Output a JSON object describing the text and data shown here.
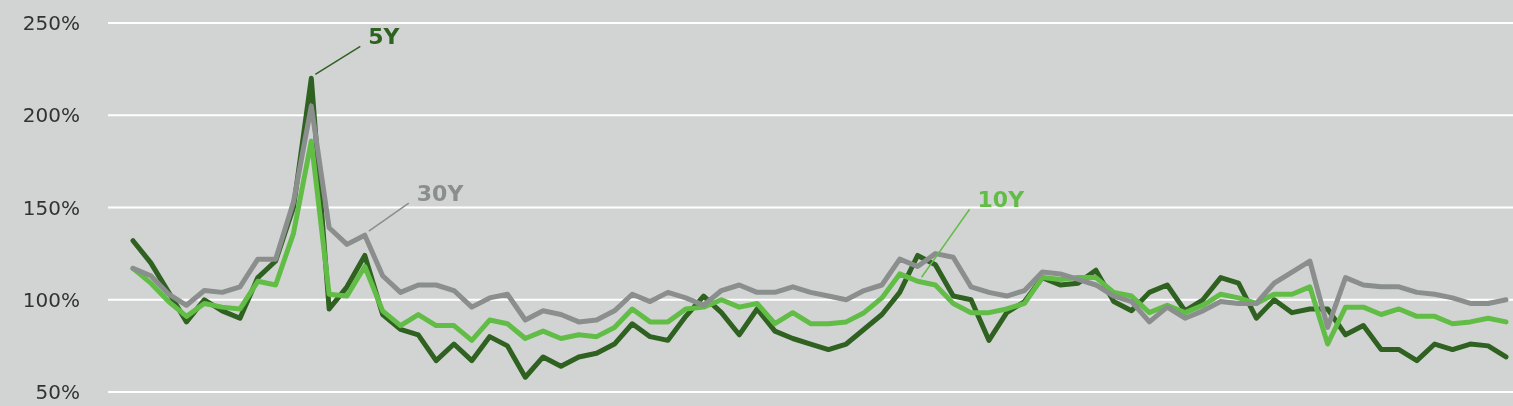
{
  "chart_data": {
    "type": "line",
    "categories": [
      null,
      null,
      null,
      null,
      null,
      null,
      null,
      null,
      null,
      null,
      null,
      null,
      null,
      null,
      null,
      null,
      null,
      null,
      null,
      null,
      null,
      null,
      null,
      null,
      null,
      null,
      null,
      null,
      null,
      null,
      null,
      null,
      null,
      null,
      null,
      null,
      null,
      null,
      null,
      null,
      null,
      null,
      null,
      null,
      null,
      null,
      null,
      null,
      null,
      null,
      null,
      null,
      null,
      null,
      null,
      null,
      null,
      null,
      null,
      null,
      null,
      null,
      null,
      null,
      null,
      null,
      null,
      null,
      null,
      null,
      null,
      null,
      null,
      null,
      null,
      null,
      null,
      null
    ],
    "series": [
      {
        "name": "5Y",
        "color": "#2f6121",
        "values": [
          132,
          120,
          104,
          88,
          100,
          94,
          90,
          112,
          121,
          150,
          220,
          95,
          107,
          124,
          92,
          84,
          81,
          67,
          76,
          67,
          80,
          75,
          58,
          69,
          64,
          69,
          71,
          76,
          87,
          80,
          78,
          91,
          102,
          93,
          81,
          95,
          83,
          79,
          76,
          73,
          76,
          84,
          92,
          104,
          124,
          119,
          102,
          100,
          78,
          93,
          99,
          112,
          108,
          109,
          116,
          99,
          94,
          104,
          108,
          94,
          100,
          112,
          109,
          90,
          100,
          93,
          95,
          95,
          81,
          86,
          73,
          73,
          67,
          76,
          73,
          76,
          75,
          69
        ]
      },
      {
        "name": "10Y",
        "color": "#62bd46",
        "values": [
          117,
          109,
          99,
          91,
          98,
          96,
          95,
          110,
          108,
          136,
          186,
          103,
          102,
          118,
          94,
          86,
          92,
          86,
          86,
          78,
          89,
          87,
          79,
          83,
          79,
          81,
          80,
          85,
          95,
          88,
          88,
          95,
          96,
          100,
          96,
          98,
          87,
          93,
          87,
          87,
          88,
          93,
          101,
          114,
          110,
          108,
          98,
          93,
          93,
          95,
          98,
          112,
          111,
          112,
          112,
          104,
          102,
          93,
          97,
          93,
          97,
          103,
          101,
          98,
          103,
          103,
          107,
          76,
          96,
          96,
          92,
          95,
          91,
          91,
          87,
          88,
          90,
          88
        ]
      },
      {
        "name": "30Y",
        "color": "#8a8e8d",
        "values": [
          117,
          113,
          103,
          97,
          105,
          104,
          107,
          122,
          122,
          153,
          205,
          139,
          130,
          135,
          113,
          104,
          108,
          108,
          105,
          96,
          101,
          103,
          89,
          94,
          92,
          88,
          89,
          94,
          103,
          99,
          104,
          101,
          97,
          105,
          108,
          104,
          104,
          107,
          104,
          102,
          100,
          105,
          108,
          122,
          118,
          125,
          123,
          107,
          104,
          102,
          105,
          115,
          114,
          111,
          108,
          102,
          99,
          88,
          96,
          90,
          94,
          99,
          98,
          98,
          109,
          115,
          121,
          85,
          112,
          108,
          107,
          107,
          104,
          103,
          101,
          98,
          98,
          100
        ]
      }
    ],
    "ylim": [
      50,
      250
    ],
    "yticks": [
      {
        "value": 50,
        "label": "50%"
      },
      {
        "value": 100,
        "label": "100%"
      },
      {
        "value": 150,
        "label": "150%"
      },
      {
        "value": 200,
        "label": "200%"
      },
      {
        "value": 250,
        "label": "250%"
      }
    ],
    "grid": "y",
    "tick_labels": "y",
    "legend": false,
    "marker": "none",
    "line_style": "solid"
  }
}
